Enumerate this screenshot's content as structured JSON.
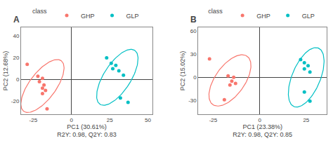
{
  "chart_data": [
    {
      "type": "scatter",
      "title": "A",
      "xlabel": "PC1 (30.61%)\nR2Y: 0.98, Q2Y: 0.83",
      "ylabel": "PC2 (12.68%)",
      "xlim": [
        -33,
        53
      ],
      "ylim": [
        -32,
        48
      ],
      "xticks": [
        -25,
        0,
        25,
        50
      ],
      "yticks": [
        -20,
        0,
        20,
        40
      ],
      "grid": false,
      "legend": "top",
      "legend_title": "class",
      "series": [
        {
          "name": "GHP",
          "color": "#F8766D",
          "marker": "circle",
          "x": [
            -29,
            -22,
            -19,
            -21,
            -18,
            -19,
            -17,
            -19,
            -16
          ],
          "y": [
            14,
            3,
            1,
            -2,
            -5,
            -8,
            -10,
            -13,
            -27
          ],
          "ellipse": {
            "cx": -19,
            "cy": -6,
            "width": 19,
            "height": 53,
            "angle": -25
          }
        },
        {
          "name": "GLP",
          "color": "#00BFC4",
          "marker": "circle",
          "x": [
            23,
            26,
            29,
            27,
            31,
            34,
            32,
            37
          ],
          "y": [
            20,
            15,
            13,
            10,
            8,
            4,
            -17,
            -21
          ],
          "ellipse": {
            "cx": 30,
            "cy": 2,
            "width": 19,
            "height": 55,
            "angle": -22
          }
        }
      ]
    },
    {
      "type": "scatter",
      "title": "B",
      "xlabel": "PC1 (23.38%)\nR2Y: 0.98, Q2Y: 0.85",
      "ylabel": "PC2 (15.02%)",
      "xlim": [
        -33,
        36
      ],
      "ylim": [
        -48,
        65
      ],
      "xticks": [
        -25,
        0,
        25
      ],
      "yticks": [
        -30,
        0,
        30,
        60
      ],
      "grid": false,
      "legend": "top",
      "legend_title": "class",
      "series": [
        {
          "name": "GHP",
          "color": "#F8766D",
          "marker": "circle",
          "x": [
            -27,
            -17,
            -14,
            -15,
            -13,
            -16,
            -19
          ],
          "y": [
            24,
            2,
            0,
            -5,
            -8,
            -10,
            -29
          ],
          "ellipse": {
            "cx": -16,
            "cy": -4,
            "width": 18,
            "height": 68,
            "angle": -12
          }
        },
        {
          "name": "GLP",
          "color": "#00BFC4",
          "marker": "circle",
          "x": [
            22,
            24,
            26,
            24,
            27,
            24,
            27
          ],
          "y": [
            23,
            19,
            15,
            11,
            7,
            -19,
            -31
          ],
          "ellipse": {
            "cx": 25,
            "cy": 0,
            "width": 16,
            "height": 78,
            "angle": -8
          }
        }
      ]
    }
  ]
}
